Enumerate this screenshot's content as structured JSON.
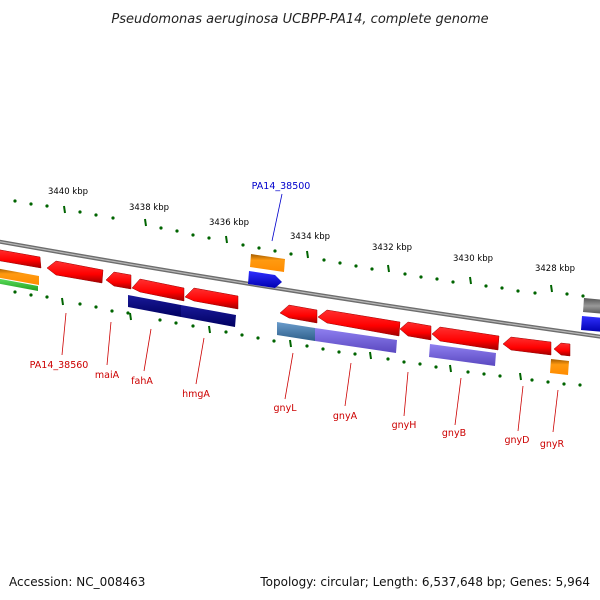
{
  "title": "Pseudomonas aeruginosa UCBPP-PA14, complete genome",
  "accession": "Accession: NC_008463",
  "topology": "Topology: circular; Length: 6,537,648 bp; Genes: 5,964",
  "ticks": [
    {
      "label": "3440 kbp"
    },
    {
      "label": "3438 kbp"
    },
    {
      "label": "3436 kbp"
    },
    {
      "label": "3434 kbp"
    },
    {
      "label": "3432 kbp"
    },
    {
      "label": "3430 kbp"
    },
    {
      "label": "3428 kbp"
    }
  ],
  "gene_labels": [
    {
      "label": "PA14_38500",
      "color": "#0000cc"
    },
    {
      "label": "PA14_38560",
      "color": "#cc0000"
    },
    {
      "label": "maiA",
      "color": "#cc0000"
    },
    {
      "label": "fahA",
      "color": "#cc0000"
    },
    {
      "label": "hmgA",
      "color": "#cc0000"
    },
    {
      "label": "gnyL",
      "color": "#cc0000"
    },
    {
      "label": "gnyA",
      "color": "#cc0000"
    },
    {
      "label": "gnyH",
      "color": "#cc0000"
    },
    {
      "label": "gnyB",
      "color": "#cc0000"
    },
    {
      "label": "gnyD",
      "color": "#cc0000"
    },
    {
      "label": "gnyR",
      "color": "#cc0000"
    }
  ],
  "colors": {
    "cds": "#ff0000",
    "cds_dark": "#b30000",
    "navy": "#000080",
    "lavender": "#7b68ee",
    "steelblue": "#4682b4",
    "blue": "#0000ff",
    "orange": "#ff8c00",
    "green": "#32cd32",
    "tick": "#006400",
    "backbone": "#808080"
  }
}
